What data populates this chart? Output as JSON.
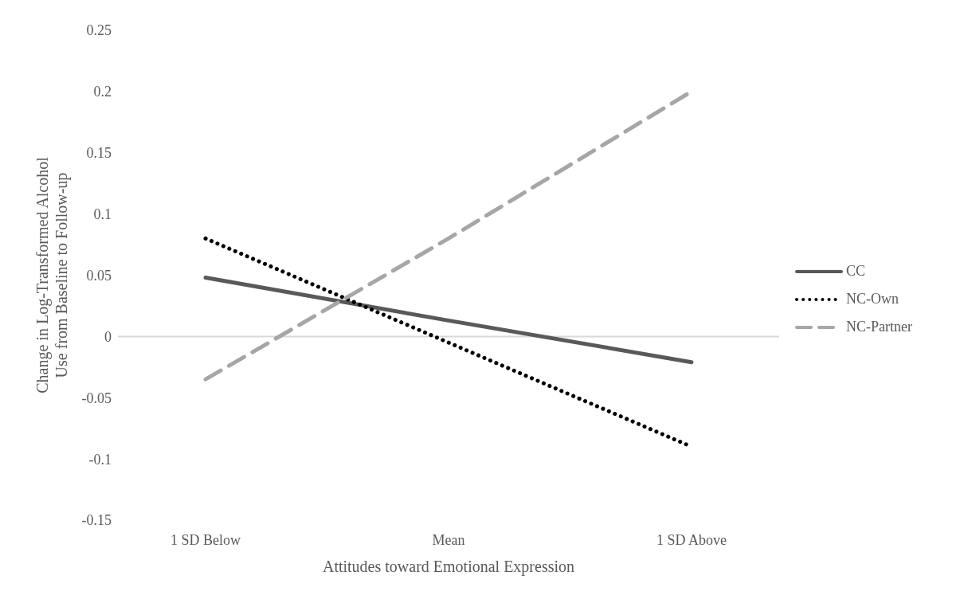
{
  "chart_data": {
    "type": "line",
    "xlabel": "Attitudes toward Emotional Expression",
    "ylabel": "Change in Log-Transformed Alcohol Use from Baseline to Follow-up",
    "categories": [
      "1 SD Below",
      "Mean",
      "1 SD Above"
    ],
    "series": [
      {
        "name": "CC",
        "color": "#595959",
        "values": [
          0.048,
          0.013,
          -0.021
        ],
        "line_style": "solid"
      },
      {
        "name": "NC-Own",
        "color": "#000000",
        "values": [
          0.08,
          -0.005,
          -0.09
        ],
        "line_style": "dotted"
      },
      {
        "name": "NC-Partner",
        "color": "#a6a6a6",
        "values": [
          -0.035,
          0.08,
          0.2
        ],
        "line_style": "dashed"
      }
    ],
    "ylim": [
      -0.15,
      0.25
    ],
    "yticks": [
      -0.15,
      -0.1,
      -0.05,
      0,
      0.05,
      0.1,
      0.15,
      0.2,
      0.25
    ],
    "ref_lines": [
      {
        "axis": "y",
        "value": 0,
        "color": "#d9d9d9"
      }
    ],
    "grid": false,
    "legend": "right",
    "marker": "none"
  }
}
